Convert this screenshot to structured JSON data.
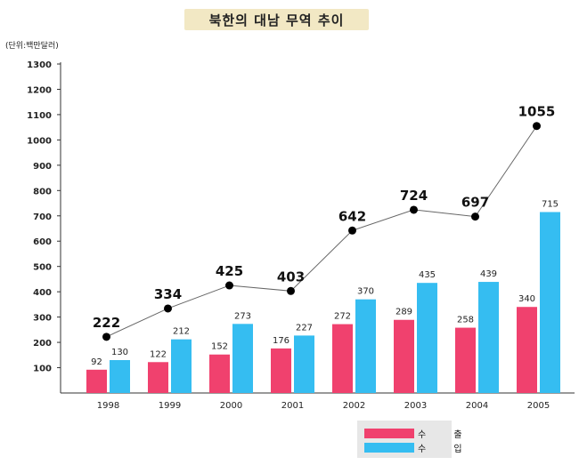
{
  "title": "북한의 대남 무역 추이",
  "unit_label": "(단위:백만달러)",
  "colors": {
    "export": "#f0416e",
    "import": "#35bdf1",
    "line": "#666666",
    "marker": "#000000"
  },
  "chart_data": {
    "type": "bar",
    "title": "북한의 대남 무역 추이",
    "unit": "(단위:백만달러)",
    "categories": [
      "1998",
      "1999",
      "2000",
      "2001",
      "2002",
      "2003",
      "2004",
      "2005"
    ],
    "series": [
      {
        "name": "수 출",
        "type": "bar",
        "values": [
          92,
          122,
          152,
          176,
          272,
          289,
          258,
          340
        ]
      },
      {
        "name": "수 입",
        "type": "bar",
        "values": [
          130,
          212,
          273,
          227,
          370,
          435,
          439,
          715
        ]
      },
      {
        "name": "",
        "type": "line",
        "values": [
          222,
          334,
          425,
          403,
          642,
          724,
          697,
          1055
        ]
      }
    ],
    "y_ticks": [
      100,
      200,
      300,
      400,
      500,
      600,
      700,
      800,
      900,
      1000,
      1100,
      1200,
      1300
    ],
    "ylim": [
      0,
      1300
    ],
    "grid": false,
    "legend_position": "bottom-right"
  }
}
